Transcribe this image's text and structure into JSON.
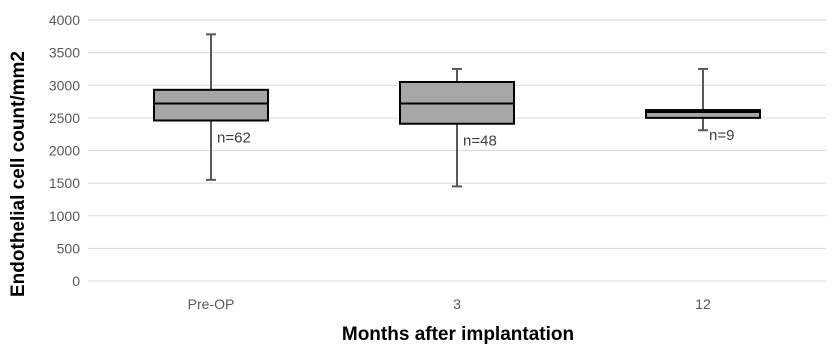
{
  "chart_data": {
    "type": "box",
    "xlabel": "Months after implantation",
    "ylabel": "Endothelial cell count/mm2",
    "ylim": [
      0,
      4000
    ],
    "yticks": [
      0,
      500,
      1000,
      1500,
      2000,
      2500,
      3000,
      3500,
      4000
    ],
    "grid": true,
    "categories": [
      "Pre-OP",
      "3",
      "12"
    ],
    "boxes": [
      {
        "category": "Pre-OP",
        "min": 1550,
        "q1": 2460,
        "median": 2720,
        "q3": 2930,
        "max": 3780,
        "annotation": "n=62"
      },
      {
        "category": "3",
        "min": 1450,
        "q1": 2410,
        "median": 2720,
        "q3": 3050,
        "max": 3250,
        "annotation": "n=48"
      },
      {
        "category": "12",
        "min": 2310,
        "q1": 2500,
        "median": 2590,
        "q3": 2620,
        "max": 3250,
        "annotation": "n=9"
      }
    ],
    "colors": {
      "box_fill": "#a6a6a6",
      "box_stroke": "#000000",
      "whisker": "#595959",
      "grid": "#d9d9d9"
    }
  }
}
